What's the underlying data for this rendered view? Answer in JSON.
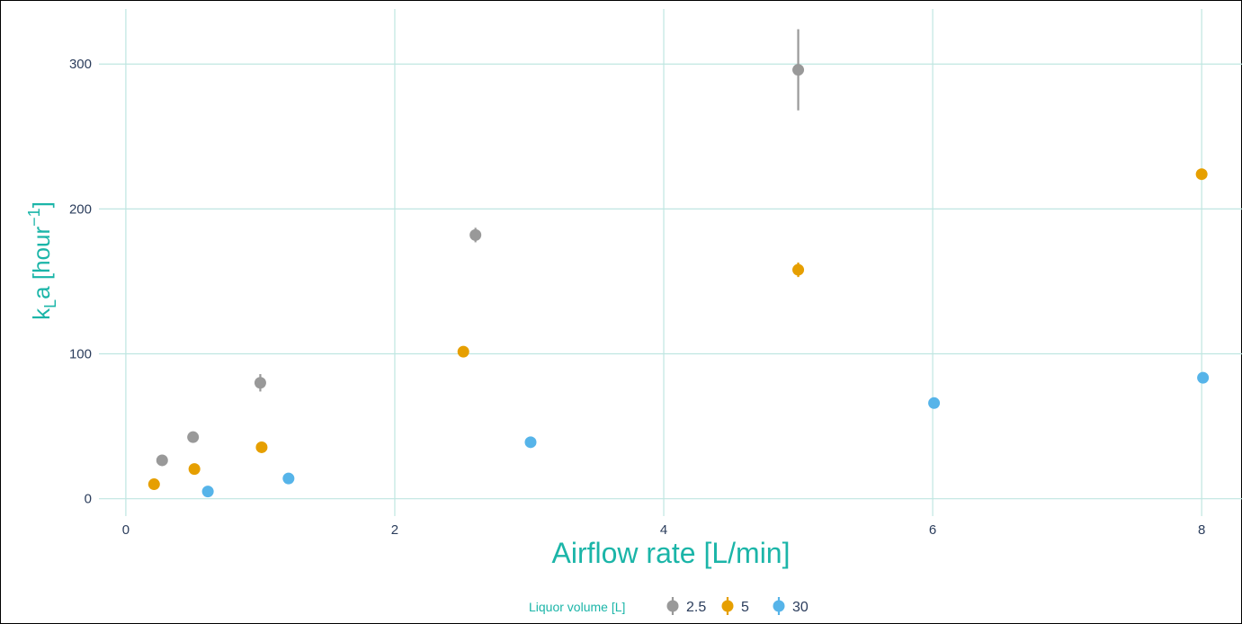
{
  "chart_data": {
    "type": "scatter",
    "xlabel": "Airflow rate [L/min]",
    "ylabel": {
      "main": "k",
      "sub": "L",
      "rest": "a [hour",
      "sup": "−1",
      "close": "]"
    },
    "xlim": [
      -0.2,
      8.3
    ],
    "ylim": [
      -12,
      338
    ],
    "x_ticks": [
      0,
      2,
      4,
      6,
      8
    ],
    "y_ticks": [
      0,
      100,
      200,
      300
    ],
    "grid": true,
    "error_bars": true,
    "legend": {
      "placement": "bottom",
      "title": "Liquor volume [L]",
      "entries": [
        "2.5",
        "5",
        "30"
      ]
    },
    "series": [
      {
        "name": "2.5",
        "color": "#999999",
        "points": [
          {
            "x": 0.27,
            "y": 26.5,
            "err": 2
          },
          {
            "x": 0.5,
            "y": 42.5,
            "err": 2
          },
          {
            "x": 1.0,
            "y": 80,
            "err": 6
          },
          {
            "x": 2.6,
            "y": 182,
            "err": 5
          },
          {
            "x": 5.0,
            "y": 296,
            "err": 28
          }
        ]
      },
      {
        "name": "5",
        "color": "#e69f00",
        "points": [
          {
            "x": 0.21,
            "y": 10,
            "err": 2
          },
          {
            "x": 0.51,
            "y": 20.5,
            "err": 2
          },
          {
            "x": 1.01,
            "y": 35.5,
            "err": 2
          },
          {
            "x": 2.51,
            "y": 101.5,
            "err": 2
          },
          {
            "x": 5.0,
            "y": 158,
            "err": 5
          },
          {
            "x": 8.0,
            "y": 224,
            "err": 2
          }
        ]
      },
      {
        "name": "30",
        "color": "#56b4e9",
        "points": [
          {
            "x": 0.61,
            "y": 5,
            "err": 2
          },
          {
            "x": 1.21,
            "y": 14,
            "err": 2
          },
          {
            "x": 3.01,
            "y": 39,
            "err": 2
          },
          {
            "x": 6.01,
            "y": 66,
            "err": 2
          },
          {
            "x": 8.01,
            "y": 83.5,
            "err": 2
          }
        ]
      }
    ]
  }
}
